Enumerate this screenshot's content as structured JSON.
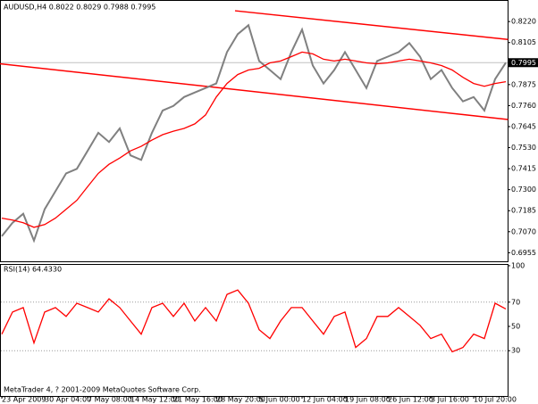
{
  "chart_data": [
    {
      "type": "line",
      "title": "AUDUSD,H4  0.8022 0.8029 0.7988 0.7995",
      "footer": "MetaTrader 4, ? 2001-2009 MetaQuotes Software Corp.",
      "categories": [
        "23 Apr 2009",
        null,
        null,
        null,
        "30 Apr 04:00",
        null,
        null,
        null,
        "7 May 08:00",
        null,
        null,
        null,
        "14 May 12:00",
        null,
        null,
        null,
        "21 May 16:00",
        null,
        null,
        null,
        "28 May 20:00",
        null,
        null,
        null,
        "5 Jun 00:00",
        null,
        null,
        null,
        "12 Jun 04:00",
        null,
        null,
        null,
        "19 Jun 08:00",
        null,
        null,
        null,
        "26 Jun 12:00",
        null,
        null,
        null,
        "3 Jul 16:00",
        null,
        null,
        null,
        "10 Jul 20:00",
        null,
        null,
        null
      ],
      "series": [
        {
          "color": "#808080",
          "values": [
            0.7045,
            0.7119,
            0.7168,
            0.7021,
            0.7193,
            0.7291,
            0.7389,
            0.7414,
            0.7512,
            0.7611,
            0.7561,
            0.7635,
            0.7488,
            0.7463,
            0.7611,
            0.7733,
            0.7758,
            0.7807,
            0.7832,
            0.7856,
            0.7881,
            0.8053,
            0.8151,
            0.82,
            0.8004,
            0.7955,
            0.7905,
            0.8053,
            0.8176,
            0.7979,
            0.7881,
            0.7955,
            0.8053,
            0.7955,
            0.7856,
            0.8004,
            0.8028,
            0.8053,
            0.8102,
            0.8028,
            0.7905,
            0.7955,
            0.7856,
            0.7783,
            0.7807,
            0.7733,
            0.7905,
            0.7995
          ]
        },
        {
          "color": "#ff0000",
          "values": [
            0.7144,
            0.7134,
            0.7119,
            0.7094,
            0.7109,
            0.7144,
            0.7193,
            0.7242,
            0.7316,
            0.7389,
            0.7439,
            0.7473,
            0.7512,
            0.7537,
            0.7571,
            0.7601,
            0.762,
            0.7635,
            0.766,
            0.7709,
            0.7807,
            0.7881,
            0.793,
            0.7955,
            0.7964,
            0.7994,
            0.8004,
            0.8028,
            0.8053,
            0.8043,
            0.8014,
            0.8004,
            0.8014,
            0.8004,
            0.7994,
            0.7989,
            0.7994,
            0.8004,
            0.8014,
            0.8004,
            0.7994,
            0.7979,
            0.7955,
            0.7915,
            0.7881,
            0.7866,
            0.7881,
            0.7891
          ]
        }
      ],
      "trendlines": [
        {
          "color": "#ff0000",
          "x": [
            21.75,
            47.2
          ],
          "values": [
            0.8279,
            0.8122
          ]
        },
        {
          "color": "#ff0000",
          "x": [
            -0.17,
            47.2
          ],
          "values": [
            0.7989,
            0.7684
          ]
        }
      ],
      "current_price": {
        "value": 0.7995,
        "label": "0.7995"
      },
      "ylim": [
        0.6908,
        0.8333
      ],
      "yticks": [
        {
          "value": 0.822,
          "label": "0.8220"
        },
        {
          "value": 0.8105,
          "label": "0.8105"
        },
        {
          "value": 0.7875,
          "label": "0.7875"
        },
        {
          "value": 0.776,
          "label": "0.7760"
        },
        {
          "value": 0.7645,
          "label": "0.7645"
        },
        {
          "value": 0.753,
          "label": "0.7530"
        },
        {
          "value": 0.7415,
          "label": "0.7415"
        },
        {
          "value": 0.73,
          "label": "0.7300"
        },
        {
          "value": 0.7185,
          "label": "0.7185"
        },
        {
          "value": 0.707,
          "label": "0.7070"
        },
        {
          "value": 0.6955,
          "label": "0.6955"
        }
      ]
    },
    {
      "type": "line",
      "title": "RSI(14) 64.4330",
      "series": [
        {
          "color": "#ff0000",
          "values": [
            43.6,
            61.8,
            65.5,
            36.4,
            61.8,
            65.5,
            58.2,
            69.1,
            65.5,
            61.8,
            72.7,
            65.5,
            54.5,
            43.6,
            65.5,
            69.1,
            58.2,
            69.1,
            54.5,
            65.5,
            54.5,
            76.4,
            80.0,
            69.1,
            47.3,
            40.0,
            54.5,
            65.5,
            65.5,
            54.5,
            43.6,
            58.2,
            61.8,
            32.7,
            40.0,
            58.2,
            58.2,
            65.5,
            58.2,
            50.9,
            40.0,
            43.6,
            29.1,
            32.7,
            43.6,
            40.0,
            69.1,
            64.433
          ]
        }
      ],
      "levels": [
        70,
        30
      ],
      "ylim": [
        -7.3,
        100.7
      ],
      "yticks": [
        100,
        70,
        50,
        30
      ]
    }
  ]
}
